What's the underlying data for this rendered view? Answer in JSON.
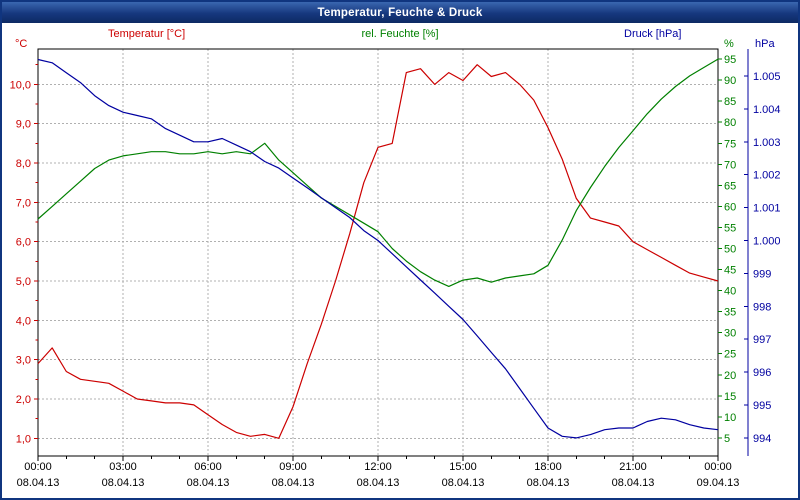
{
  "window": {
    "title": "Temperatur, Feuchte & Druck"
  },
  "legend": {
    "temperature": "Temperatur [°C]",
    "humidity": "rel. Feuchte [%]",
    "pressure": "Druck [hPa]"
  },
  "axes": {
    "temp_unit": "°C",
    "humidity_unit": "%",
    "pressure_unit": "hPa",
    "temp_ticks": [
      {
        "label": "10,0",
        "value": 10
      },
      {
        "label": "9,0",
        "value": 9
      },
      {
        "label": "8,0",
        "value": 8
      },
      {
        "label": "7,0",
        "value": 7
      },
      {
        "label": "6,0",
        "value": 6
      },
      {
        "label": "5,0",
        "value": 5
      },
      {
        "label": "4,0",
        "value": 4
      },
      {
        "label": "3,0",
        "value": 3
      },
      {
        "label": "2,0",
        "value": 2
      },
      {
        "label": "1,0",
        "value": 1
      }
    ],
    "humidity_ticks": [
      {
        "label": "95",
        "value": 95
      },
      {
        "label": "90",
        "value": 90
      },
      {
        "label": "85",
        "value": 85
      },
      {
        "label": "80",
        "value": 80
      },
      {
        "label": "75",
        "value": 75
      },
      {
        "label": "70",
        "value": 70
      },
      {
        "label": "65",
        "value": 65
      },
      {
        "label": "60",
        "value": 60
      },
      {
        "label": "55",
        "value": 55
      },
      {
        "label": "50",
        "value": 50
      },
      {
        "label": "45",
        "value": 45
      },
      {
        "label": "40",
        "value": 40
      },
      {
        "label": "35",
        "value": 35
      },
      {
        "label": "30",
        "value": 30
      },
      {
        "label": "25",
        "value": 25
      },
      {
        "label": "20",
        "value": 20
      },
      {
        "label": "15",
        "value": 15
      },
      {
        "label": "10",
        "value": 10
      },
      {
        "label": "5",
        "value": 5
      }
    ],
    "pressure_ticks": [
      {
        "label": "1.005",
        "value": 1005
      },
      {
        "label": "1.004",
        "value": 1004
      },
      {
        "label": "1.003",
        "value": 1003
      },
      {
        "label": "1.002",
        "value": 1002
      },
      {
        "label": "1.001",
        "value": 1001
      },
      {
        "label": "1.000",
        "value": 1000
      },
      {
        "label": "999",
        "value": 999
      },
      {
        "label": "998",
        "value": 998
      },
      {
        "label": "997",
        "value": 997
      },
      {
        "label": "996",
        "value": 996
      },
      {
        "label": "995",
        "value": 995
      },
      {
        "label": "994",
        "value": 994
      }
    ],
    "x_ticks": [
      {
        "hour": 0,
        "time": "00:00",
        "date": "08.04.13"
      },
      {
        "hour": 3,
        "time": "03:00",
        "date": "08.04.13"
      },
      {
        "hour": 6,
        "time": "06:00",
        "date": "08.04.13"
      },
      {
        "hour": 9,
        "time": "09:00",
        "date": "08.04.13"
      },
      {
        "hour": 12,
        "time": "12:00",
        "date": "08.04.13"
      },
      {
        "hour": 15,
        "time": "15:00",
        "date": "08.04.13"
      },
      {
        "hour": 18,
        "time": "18:00",
        "date": "08.04.13"
      },
      {
        "hour": 21,
        "time": "21:00",
        "date": "08.04.13"
      },
      {
        "hour": 24,
        "time": "00:00",
        "date": "09.04.13"
      }
    ]
  },
  "colors": {
    "temperature": "#cc0000",
    "humidity": "#008000",
    "pressure": "#0000a0",
    "grid": "#b0b0b0",
    "axis": "#000000",
    "titlebar": "#16377e",
    "title_text": "#ffffff"
  },
  "chart_data": {
    "type": "line",
    "title": "Temperatur, Feuchte & Druck",
    "x_tick_labels": [
      "00:00",
      "03:00",
      "06:00",
      "09:00",
      "12:00",
      "15:00",
      "18:00",
      "21:00",
      "00:00"
    ],
    "x_dates": [
      "08.04.13",
      "08.04.13",
      "08.04.13",
      "08.04.13",
      "08.04.13",
      "08.04.13",
      "08.04.13",
      "08.04.13",
      "09.04.13"
    ],
    "grid": true,
    "x_hours": [
      0,
      0.5,
      1,
      1.5,
      2,
      2.5,
      3,
      3.5,
      4,
      4.5,
      5,
      5.5,
      6,
      6.5,
      7,
      7.5,
      8,
      8.5,
      9,
      9.5,
      10,
      10.5,
      11,
      11.5,
      12,
      12.5,
      13,
      13.5,
      14,
      14.5,
      15,
      15.5,
      16,
      16.5,
      17,
      17.5,
      18,
      18.5,
      19,
      19.5,
      20,
      20.5,
      21,
      21.5,
      22,
      22.5,
      23,
      23.5,
      24
    ],
    "series": [
      {
        "name": "Temperatur",
        "unit": "°C",
        "axis": "left",
        "color": "#cc0000",
        "range": [
          0.55,
          10.9
        ],
        "values": [
          2.9,
          3.3,
          2.7,
          2.5,
          2.45,
          2.4,
          2.2,
          2.0,
          1.95,
          1.9,
          1.9,
          1.85,
          1.6,
          1.35,
          1.15,
          1.05,
          1.1,
          1.0,
          1.8,
          2.9,
          3.9,
          5.0,
          6.2,
          7.5,
          8.4,
          8.5,
          10.3,
          10.4,
          10.0,
          10.3,
          10.1,
          10.5,
          10.2,
          10.3,
          10.0,
          9.6,
          8.9,
          8.1,
          7.1,
          6.6,
          6.5,
          6.4,
          6.0,
          5.8,
          5.6,
          5.4,
          5.2,
          5.1,
          5.0
        ]
      },
      {
        "name": "rel. Feuchte",
        "unit": "%",
        "axis": "right1",
        "color": "#008000",
        "range": [
          0.7,
          97.4
        ],
        "values": [
          57,
          60,
          63,
          66,
          69,
          71,
          72,
          72.5,
          73,
          73,
          72.5,
          72.5,
          73,
          72.5,
          73,
          72.5,
          75,
          71,
          68,
          65,
          62,
          60,
          58,
          56,
          54,
          50,
          47,
          44.5,
          42.5,
          41,
          42.5,
          43,
          42,
          43,
          43.5,
          44,
          46,
          52,
          59,
          64.5,
          69.5,
          74,
          78,
          82,
          85.5,
          88.5,
          91,
          93,
          95
        ]
      },
      {
        "name": "Druck",
        "unit": "hPa",
        "axis": "right2",
        "color": "#0000a0",
        "range": [
          993.45,
          1005.82
        ],
        "values": [
          1005.5,
          1005.4,
          1005.1,
          1004.8,
          1004.4,
          1004.1,
          1003.9,
          1003.8,
          1003.7,
          1003.4,
          1003.2,
          1003.0,
          1003.0,
          1003.1,
          1002.9,
          1002.7,
          1002.4,
          1002.2,
          1001.9,
          1001.6,
          1001.3,
          1001.0,
          1000.7,
          1000.3,
          1000.0,
          999.6,
          999.2,
          998.8,
          998.4,
          998.0,
          997.6,
          997.1,
          996.6,
          996.1,
          995.5,
          994.9,
          994.3,
          994.05,
          994.0,
          994.1,
          994.25,
          994.3,
          994.3,
          994.5,
          994.6,
          994.55,
          994.4,
          994.3,
          994.25
        ]
      }
    ]
  }
}
